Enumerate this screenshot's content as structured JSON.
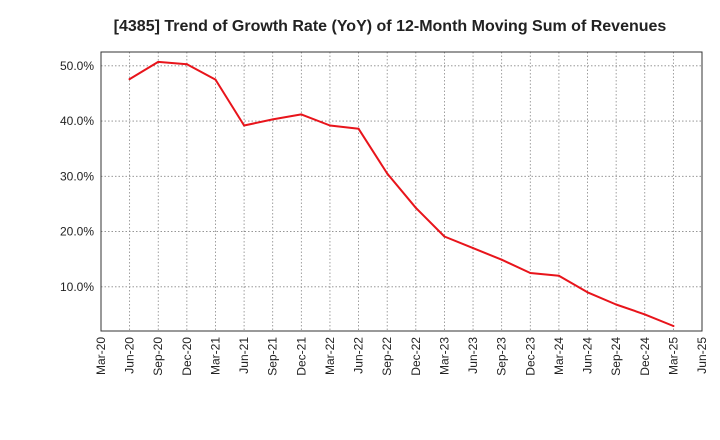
{
  "chart_data": {
    "type": "line",
    "title": "[4385]  Trend of Growth Rate (YoY) of 12-Month Moving Sum of Revenues",
    "xlabel": "",
    "ylabel": "",
    "x_tick_labels": [
      "Mar-20",
      "Jun-20",
      "Sep-20",
      "Dec-20",
      "Mar-21",
      "Jun-21",
      "Sep-21",
      "Dec-21",
      "Mar-22",
      "Jun-22",
      "Sep-22",
      "Dec-22",
      "Mar-23",
      "Jun-23",
      "Sep-23",
      "Dec-23",
      "Mar-24",
      "Jun-24",
      "Sep-24",
      "Dec-24",
      "Mar-25",
      "Jun-25"
    ],
    "y_ticks": [
      10,
      20,
      30,
      40,
      50
    ],
    "y_tick_labels": [
      "10.0%",
      "20.0%",
      "30.0%",
      "40.0%",
      "50.0%"
    ],
    "ylim": [
      2,
      52.5
    ],
    "grid": true,
    "line_color": "#e8141b",
    "series": [
      {
        "x": [
          "Jun-20",
          "Sep-20",
          "Dec-20",
          "Mar-21",
          "Jun-21",
          "Sep-21",
          "Dec-21",
          "Mar-22",
          "Jun-22",
          "Sep-22",
          "Dec-22",
          "Mar-23",
          "Jun-23",
          "Sep-23",
          "Dec-23",
          "Mar-24",
          "Jun-24",
          "Sep-24",
          "Dec-24",
          "Mar-25"
        ],
        "values": [
          47.6,
          50.7,
          50.3,
          47.5,
          39.2,
          40.3,
          41.2,
          39.2,
          38.6,
          30.5,
          24.3,
          19.1,
          17.0,
          14.9,
          12.5,
          12.0,
          9.0,
          6.8,
          5.0,
          2.9
        ]
      }
    ]
  }
}
